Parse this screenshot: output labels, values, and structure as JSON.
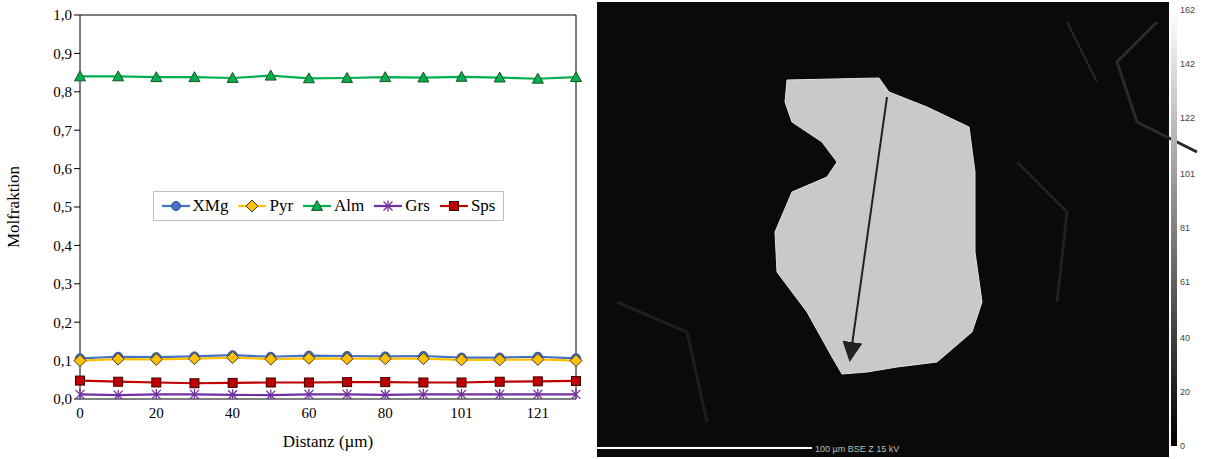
{
  "chart_data": {
    "type": "line",
    "x_label": "Distanz (µm)",
    "y_label": "Molfraktion",
    "categories": [
      "0",
      null,
      "20",
      null,
      "40",
      null,
      "60",
      null,
      "80",
      null,
      "101",
      null,
      "121",
      null
    ],
    "series": [
      {
        "name": "XMg",
        "color": "#4472c4",
        "marker": "circle",
        "line_style": "solid",
        "values": [
          0.106,
          0.11,
          0.109,
          0.111,
          0.114,
          0.11,
          0.113,
          0.112,
          0.111,
          0.112,
          0.108,
          0.108,
          0.11,
          0.106
        ]
      },
      {
        "name": "Pyr",
        "color": "#ffc000",
        "marker": "diamond",
        "line_style": "solid",
        "values": [
          0.1,
          0.104,
          0.103,
          0.105,
          0.108,
          0.104,
          0.106,
          0.105,
          0.105,
          0.105,
          0.102,
          0.102,
          0.103,
          0.1
        ]
      },
      {
        "name": "Alm",
        "color": "#00b050",
        "marker": "triangle",
        "line_style": "solid",
        "values": [
          0.84,
          0.84,
          0.838,
          0.838,
          0.836,
          0.842,
          0.835,
          0.836,
          0.838,
          0.837,
          0.839,
          0.837,
          0.834,
          0.838
        ]
      },
      {
        "name": "Grs",
        "color": "#7030a0",
        "marker": "star",
        "line_style": "solid",
        "values": [
          0.012,
          0.01,
          0.012,
          0.012,
          0.011,
          0.01,
          0.012,
          0.012,
          0.011,
          0.012,
          0.012,
          0.012,
          0.012,
          0.012
        ]
      },
      {
        "name": "Sps",
        "color": "#c00000",
        "marker": "square",
        "line_style": "solid",
        "values": [
          0.048,
          0.045,
          0.043,
          0.041,
          0.042,
          0.043,
          0.043,
          0.044,
          0.044,
          0.043,
          0.043,
          0.045,
          0.046,
          0.047
        ]
      }
    ],
    "ylim": [
      0,
      1
    ],
    "yticks": [
      {
        "value": 0,
        "label": "0,0"
      },
      {
        "value": 0.1,
        "label": "0,1"
      },
      {
        "value": 0.2,
        "label": "0,2"
      },
      {
        "value": 0.3,
        "label": "0,3"
      },
      {
        "value": 0.4,
        "label": "0,4"
      },
      {
        "value": 0.5,
        "label": "0,5"
      },
      {
        "value": 0.6,
        "label": "0,6"
      },
      {
        "value": 0.7,
        "label": "0,7"
      },
      {
        "value": 0.8,
        "label": "0,8"
      },
      {
        "value": 0.9,
        "label": "0,9"
      },
      {
        "value": 1,
        "label": "1,0"
      }
    ],
    "grid": false,
    "legend": "center"
  },
  "image": {
    "caption": "100 µm BSE Z 15 kV",
    "colorbar_ticks": [
      162,
      142,
      122,
      101,
      81,
      61,
      40,
      20,
      0
    ]
  }
}
